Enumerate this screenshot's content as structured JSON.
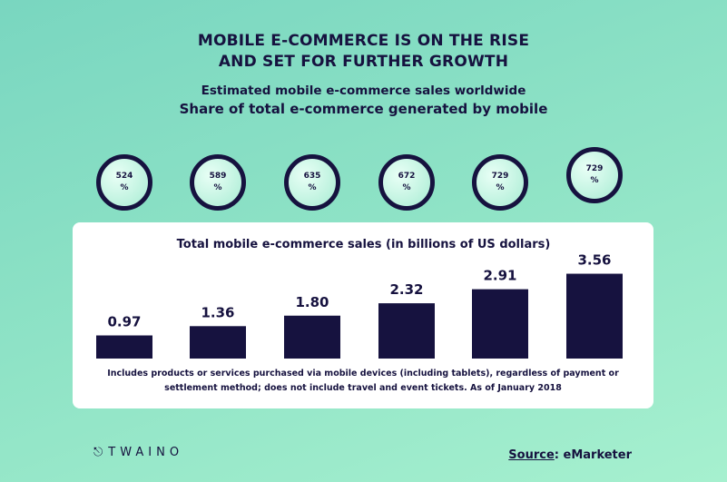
{
  "chart_data": {
    "type": "bar",
    "title": "MOBILE E-COMMERCE IS ON THE RISE\nAND SET FOR FURTHER GROWTH",
    "subtitle": "Estimated mobile e-commerce sales worldwide",
    "subtitle2": "Share of total e-commerce generated by mobile",
    "circle_labels": [
      "524\n%",
      "589\n%",
      "635\n%",
      "672\n%",
      "729\n%",
      "729\n%"
    ],
    "chart_title": "Total mobile e-commerce sales (in billions of US dollars)",
    "values": [
      0.97,
      1.36,
      1.8,
      2.32,
      2.91,
      3.56
    ],
    "value_labels": [
      "0.97",
      "1.36",
      "1.80",
      "2.32",
      "2.91",
      "3.56"
    ],
    "color": "#16123f",
    "ylim": [
      0,
      4
    ],
    "note": "Includes products or services purchased via mobile devices (including tablets), regardless of payment or settlement method; does not include travel and event tickets. As of January 2018",
    "logo": "TWAINO",
    "source_label": "Source",
    "source_text": ": eMarketer"
  }
}
